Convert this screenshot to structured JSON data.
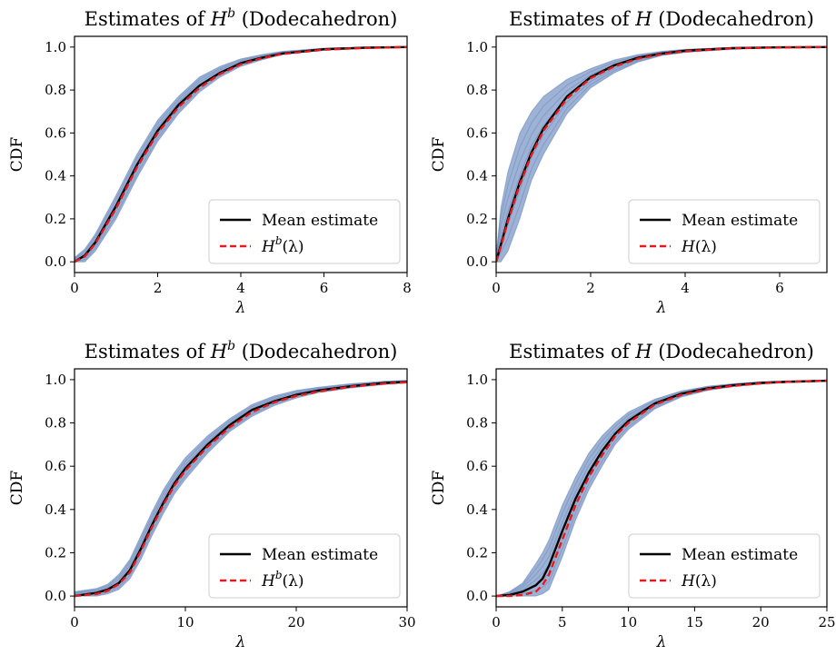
{
  "figure": {
    "ylabel": "CDF",
    "xlabel": "λ"
  },
  "chart_data": [
    {
      "type": "line",
      "title": "Estimates of H^b (Dodecahedron)",
      "title_main": "Estimates of ",
      "title_sym": "H",
      "title_sup": "b",
      "title_tail": " (Dodecahedron)",
      "xlabel": "λ",
      "ylabel": "CDF",
      "xlim": [
        0,
        8
      ],
      "ylim": [
        -0.05,
        1.05
      ],
      "xticks": [
        0,
        2,
        4,
        6,
        8
      ],
      "yticks": [
        0.0,
        0.2,
        0.4,
        0.6,
        0.8,
        1.0
      ],
      "legend": {
        "position": "lower-right",
        "mean_label": "Mean estimate",
        "true_label": "H^b(λ)",
        "true_sym": "H",
        "true_sup": "b",
        "true_arg": "(λ)"
      },
      "mean_estimate": {
        "x": [
          0,
          0.25,
          0.5,
          1,
          1.5,
          2,
          2.5,
          3,
          3.5,
          4,
          4.5,
          5,
          6,
          7,
          8
        ],
        "y": [
          0,
          0.03,
          0.09,
          0.26,
          0.45,
          0.61,
          0.73,
          0.82,
          0.88,
          0.925,
          0.95,
          0.97,
          0.99,
          0.997,
          1.0
        ]
      },
      "true_cdf": {
        "x": [
          0,
          0.25,
          0.5,
          1,
          1.5,
          2,
          2.5,
          3,
          3.5,
          4,
          4.5,
          5,
          6,
          7,
          8
        ],
        "y": [
          0,
          0.025,
          0.085,
          0.25,
          0.44,
          0.6,
          0.72,
          0.81,
          0.875,
          0.92,
          0.948,
          0.968,
          0.988,
          0.996,
          1.0
        ]
      },
      "band": {
        "x": [
          0,
          0.25,
          0.5,
          1,
          1.5,
          2,
          2.5,
          3,
          3.5,
          4,
          4.5,
          5,
          6,
          7,
          8
        ],
        "lower": [
          0,
          0.0,
          0.05,
          0.2,
          0.39,
          0.56,
          0.69,
          0.79,
          0.86,
          0.91,
          0.94,
          0.965,
          0.985,
          0.995,
          1.0
        ],
        "upper": [
          0.02,
          0.06,
          0.13,
          0.31,
          0.5,
          0.66,
          0.77,
          0.86,
          0.91,
          0.945,
          0.965,
          0.98,
          0.995,
          1.0,
          1.0
        ]
      },
      "colors": {
        "band": "#4c72b0",
        "mean": "#000000",
        "true": "#e41a1c"
      }
    },
    {
      "type": "line",
      "title": "Estimates of H (Dodecahedron)",
      "title_main": "Estimates of ",
      "title_sym": "H",
      "title_sup": "",
      "title_tail": " (Dodecahedron)",
      "xlabel": "λ",
      "ylabel": "CDF",
      "xlim": [
        0,
        7
      ],
      "ylim": [
        -0.05,
        1.05
      ],
      "xticks": [
        0,
        2,
        4,
        6
      ],
      "yticks": [
        0.0,
        0.2,
        0.4,
        0.6,
        0.8,
        1.0
      ],
      "legend": {
        "position": "lower-right",
        "mean_label": "Mean estimate",
        "true_label": "H(λ)",
        "true_sym": "H",
        "true_sup": "",
        "true_arg": "(λ)"
      },
      "mean_estimate": {
        "x": [
          0,
          0.1,
          0.25,
          0.5,
          0.75,
          1,
          1.5,
          2,
          2.5,
          3,
          3.5,
          4,
          5,
          6,
          7
        ],
        "y": [
          0,
          0.08,
          0.2,
          0.37,
          0.51,
          0.62,
          0.77,
          0.86,
          0.915,
          0.95,
          0.97,
          0.983,
          0.995,
          0.999,
          1.0
        ]
      },
      "true_cdf": {
        "x": [
          0,
          0.1,
          0.25,
          0.5,
          0.75,
          1,
          1.5,
          2,
          2.5,
          3,
          3.5,
          4,
          5,
          6,
          7
        ],
        "y": [
          0,
          0.07,
          0.19,
          0.36,
          0.5,
          0.61,
          0.76,
          0.855,
          0.91,
          0.946,
          0.967,
          0.98,
          0.994,
          0.998,
          1.0
        ]
      },
      "band": {
        "x": [
          0,
          0.1,
          0.25,
          0.5,
          0.75,
          1,
          1.5,
          2,
          2.5,
          3,
          3.5,
          4,
          5,
          6,
          7
        ],
        "lower": [
          0,
          0.0,
          0.05,
          0.2,
          0.38,
          0.5,
          0.69,
          0.81,
          0.88,
          0.93,
          0.96,
          0.975,
          0.99,
          0.998,
          1.0
        ],
        "upper": [
          0.03,
          0.25,
          0.42,
          0.6,
          0.7,
          0.77,
          0.85,
          0.9,
          0.94,
          0.965,
          0.98,
          0.99,
          0.998,
          1.0,
          1.0
        ]
      },
      "colors": {
        "band": "#4c72b0",
        "mean": "#000000",
        "true": "#e41a1c"
      }
    },
    {
      "type": "line",
      "title": "Estimates of H^b (Dodecahedron)",
      "title_main": "Estimates of ",
      "title_sym": "H",
      "title_sup": "b",
      "title_tail": " (Dodecahedron)",
      "xlabel": "λ",
      "ylabel": "CDF",
      "xlim": [
        0,
        30
      ],
      "ylim": [
        -0.05,
        1.05
      ],
      "xticks": [
        0,
        10,
        20,
        30
      ],
      "yticks": [
        0.0,
        0.2,
        0.4,
        0.6,
        0.8,
        1.0
      ],
      "legend": {
        "position": "lower-right",
        "mean_label": "Mean estimate",
        "true_label": "H^b(λ)",
        "true_sym": "H",
        "true_sup": "b",
        "true_arg": "(λ)"
      },
      "mean_estimate": {
        "x": [
          0,
          2,
          3,
          4,
          5,
          6,
          7,
          8,
          9,
          10,
          12,
          14,
          16,
          18,
          20,
          22,
          25,
          28,
          30
        ],
        "y": [
          0,
          0.015,
          0.03,
          0.06,
          0.12,
          0.22,
          0.33,
          0.43,
          0.52,
          0.59,
          0.7,
          0.79,
          0.86,
          0.9,
          0.93,
          0.95,
          0.97,
          0.985,
          0.99
        ]
      },
      "true_cdf": {
        "x": [
          0,
          2,
          3,
          4,
          5,
          6,
          7,
          8,
          9,
          10,
          12,
          14,
          16,
          18,
          20,
          22,
          25,
          28,
          30
        ],
        "y": [
          0,
          0.01,
          0.025,
          0.055,
          0.11,
          0.21,
          0.32,
          0.42,
          0.51,
          0.58,
          0.69,
          0.78,
          0.85,
          0.895,
          0.925,
          0.945,
          0.968,
          0.982,
          0.988
        ]
      },
      "band": {
        "x": [
          0,
          2,
          3,
          4,
          5,
          6,
          7,
          8,
          9,
          10,
          12,
          14,
          16,
          18,
          20,
          22,
          25,
          28,
          30
        ],
        "lower": [
          0,
          0.0,
          0.01,
          0.03,
          0.08,
          0.17,
          0.28,
          0.38,
          0.47,
          0.54,
          0.66,
          0.76,
          0.83,
          0.88,
          0.915,
          0.94,
          0.962,
          0.978,
          0.985
        ],
        "upper": [
          0.02,
          0.035,
          0.055,
          0.1,
          0.17,
          0.28,
          0.39,
          0.49,
          0.57,
          0.64,
          0.74,
          0.82,
          0.885,
          0.925,
          0.95,
          0.965,
          0.982,
          0.993,
          0.997
        ]
      },
      "colors": {
        "band": "#4c72b0",
        "mean": "#000000",
        "true": "#e41a1c"
      }
    },
    {
      "type": "line",
      "title": "Estimates of H (Dodecahedron)",
      "title_main": "Estimates of ",
      "title_sym": "H",
      "title_sup": "",
      "title_tail": " (Dodecahedron)",
      "xlabel": "λ",
      "ylabel": "CDF",
      "xlim": [
        0,
        25
      ],
      "ylim": [
        -0.05,
        1.05
      ],
      "xticks": [
        0,
        5,
        10,
        15,
        20,
        25
      ],
      "yticks": [
        0.0,
        0.2,
        0.4,
        0.6,
        0.8,
        1.0
      ],
      "legend": {
        "position": "lower-right",
        "mean_label": "Mean estimate",
        "true_label": "H(λ)",
        "true_sym": "H",
        "true_sup": "",
        "true_arg": "(λ)"
      },
      "mean_estimate": {
        "x": [
          0,
          1,
          2,
          3,
          3.5,
          4,
          5,
          6,
          7,
          8,
          9,
          10,
          12,
          14,
          16,
          18,
          20,
          22,
          25
        ],
        "y": [
          0,
          0.005,
          0.02,
          0.05,
          0.08,
          0.14,
          0.3,
          0.45,
          0.57,
          0.67,
          0.75,
          0.81,
          0.89,
          0.935,
          0.96,
          0.975,
          0.985,
          0.99,
          0.995
        ]
      },
      "true_cdf": {
        "x": [
          0,
          1,
          2,
          3,
          3.5,
          4,
          5,
          6,
          7,
          8,
          9,
          10,
          12,
          14,
          16,
          18,
          20,
          22,
          25
        ],
        "y": [
          0,
          0,
          0.005,
          0.02,
          0.05,
          0.1,
          0.26,
          0.42,
          0.55,
          0.65,
          0.74,
          0.8,
          0.885,
          0.93,
          0.957,
          0.972,
          0.983,
          0.99,
          0.995
        ]
      },
      "band": {
        "x": [
          0,
          1,
          2,
          3,
          3.5,
          4,
          5,
          6,
          7,
          8,
          9,
          10,
          12,
          14,
          16,
          18,
          20,
          22,
          25
        ],
        "lower": [
          0,
          0,
          0,
          0,
          0.01,
          0.03,
          0.18,
          0.35,
          0.49,
          0.6,
          0.7,
          0.77,
          0.865,
          0.92,
          0.95,
          0.968,
          0.98,
          0.988,
          0.994
        ],
        "upper": [
          0,
          0.02,
          0.06,
          0.15,
          0.2,
          0.26,
          0.42,
          0.55,
          0.66,
          0.74,
          0.8,
          0.85,
          0.91,
          0.948,
          0.97,
          0.982,
          0.99,
          0.995,
          0.998
        ]
      },
      "colors": {
        "band": "#4c72b0",
        "mean": "#000000",
        "true": "#e41a1c"
      }
    }
  ]
}
